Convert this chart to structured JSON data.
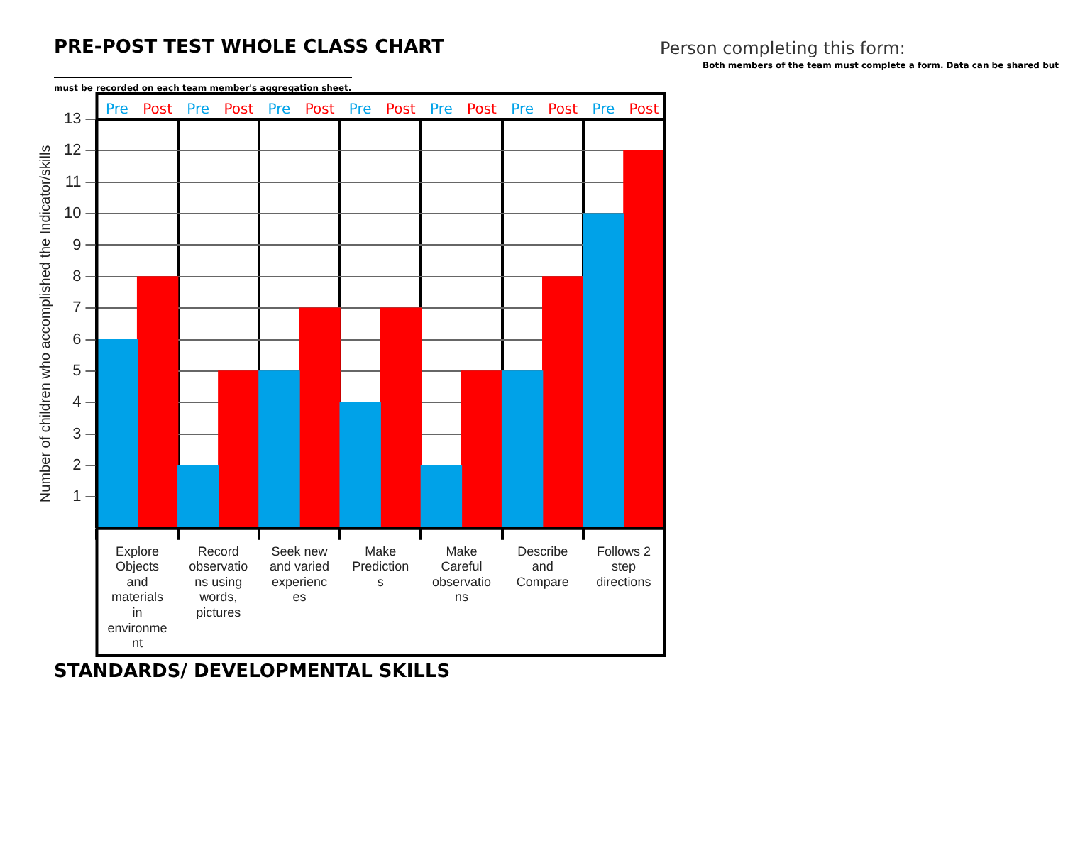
{
  "chart_data": {
    "type": "bar",
    "title": "PRE-POST TEST WHOLE CLASS CHART",
    "xlabel": "STANDARDS/ DEVELOPMENTAL SKILLS",
    "ylabel": "Number of children who accomplished the Indicator/skills",
    "annotations": [
      "Person completing this form:",
      "Both members of the team must complete a form.  Data can be shared but",
      "must be recorded on each team member's aggregation sheet."
    ],
    "categories": [
      "Explore Objects and materials in environment",
      "Record observations using words, pictures",
      "Seek new and varied experiences",
      "Make Predictions",
      "Make Careful observations",
      "Describe and Compare",
      "Follows 2 step directions"
    ],
    "series": [
      {
        "name": "Pre",
        "color": "#00a2e8",
        "values": [
          6,
          2,
          5,
          4,
          2,
          5,
          10
        ]
      },
      {
        "name": "Post",
        "color": "#ff0000",
        "values": [
          8,
          5,
          7,
          7,
          5,
          8,
          12
        ]
      }
    ],
    "ylim": [
      0,
      13
    ],
    "yticks": [
      1,
      2,
      3,
      4,
      5,
      6,
      7,
      8,
      9,
      10,
      11,
      12,
      13
    ],
    "grid": true,
    "legend": false
  }
}
